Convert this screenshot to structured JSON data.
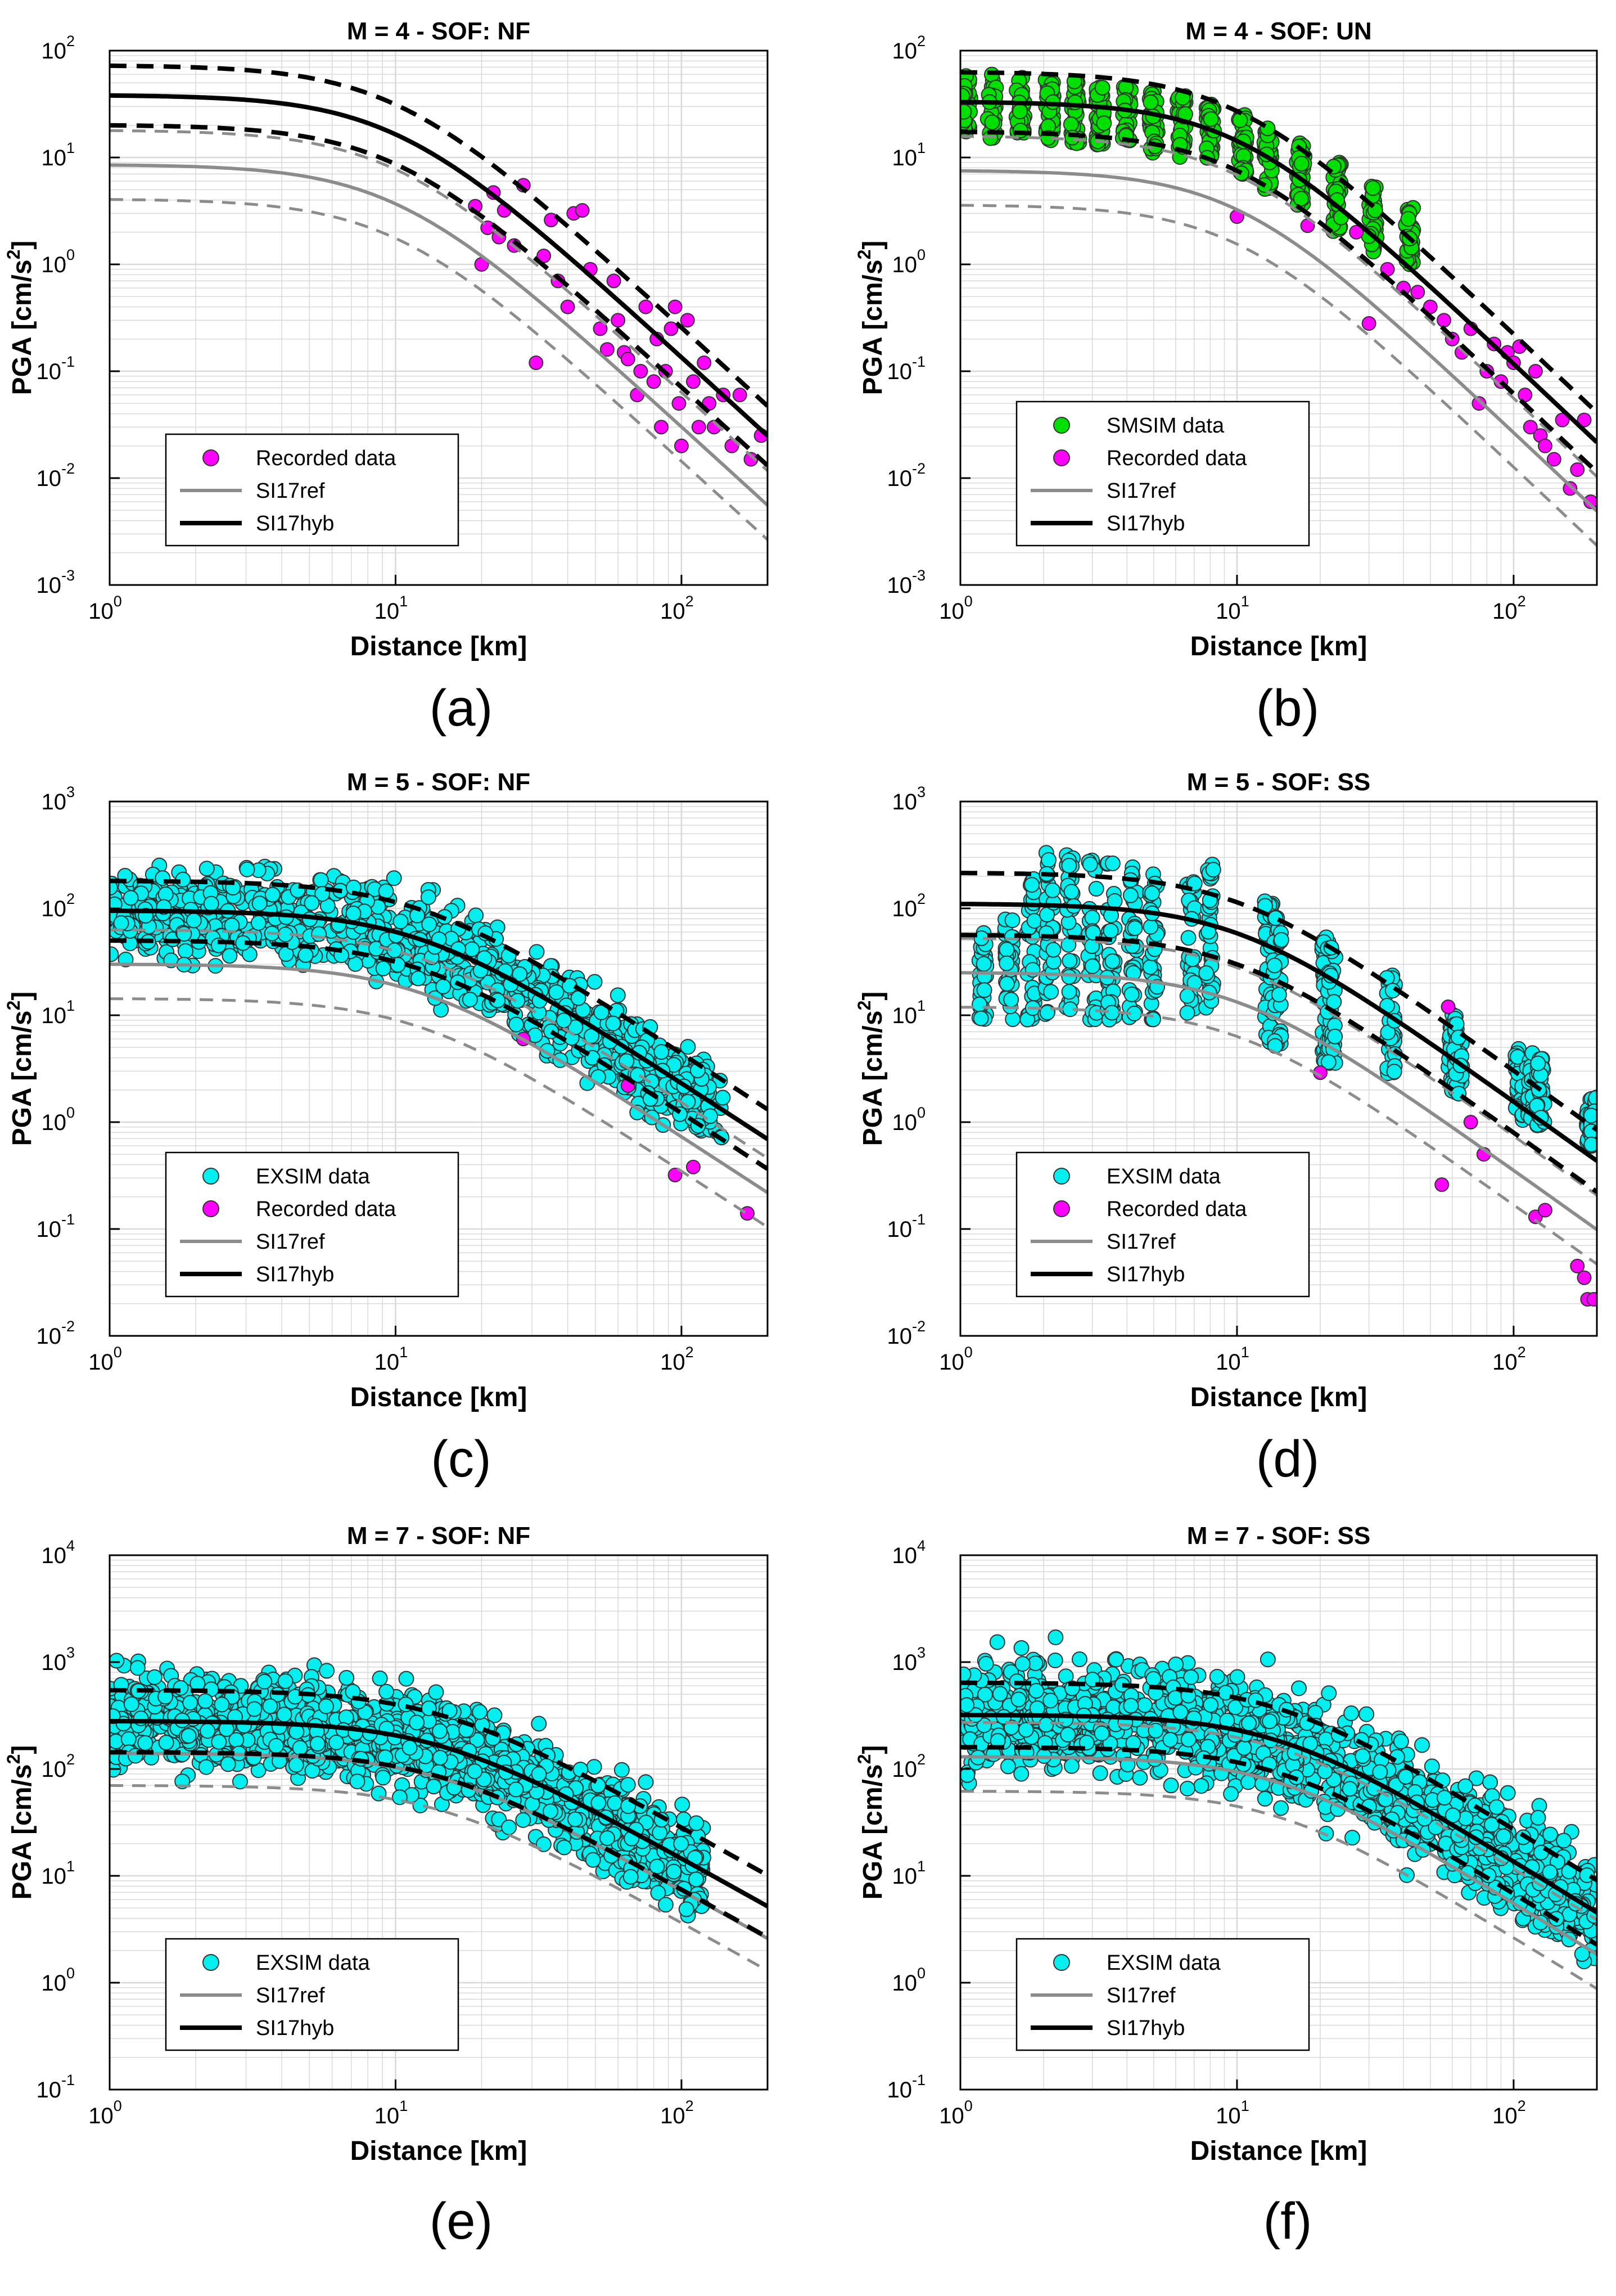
{
  "figure": {
    "colors": {
      "recorded": "#ff00ff",
      "smsim": "#00e000",
      "exsim": "#00f0f0",
      "ref": "#8c8c8c",
      "hyb": "#000000",
      "grid": "#d9d9d9"
    }
  },
  "chart_data": [
    {
      "type": "scatter",
      "panel_label": "(a)",
      "title": "M = 4 - SOF: NF",
      "xlabel": "Distance [km]",
      "ylabel": "PGA [cm/s²]",
      "xlim": [
        1,
        200
      ],
      "ylim": [
        0.001,
        100
      ],
      "x_ticks": [
        "10^0",
        "10^1",
        "10^2"
      ],
      "y_ticks": [
        "10^-3",
        "10^-2",
        "10^-1",
        "10^0",
        "10^1",
        "10^2"
      ],
      "grid": true,
      "legend_position": "lower-left",
      "legend": [
        "Recorded data",
        "SI17ref",
        "SI17hyb"
      ],
      "curves": {
        "hyb_median_pga_at_1km": 38,
        "hyb_sigma_factor": 1.9,
        "ref_median_pga_at_1km": 8.5,
        "ref_sigma_factor": 2.1,
        "corner_distance_km": 10,
        "far_slope": 2.45
      },
      "series": [
        {
          "name": "Recorded data",
          "points": [
            [
              19,
              3.5
            ],
            [
              20,
              1.0
            ],
            [
              21,
              2.2
            ],
            [
              22,
              4.7
            ],
            [
              23,
              1.8
            ],
            [
              24,
              3.2
            ],
            [
              26,
              1.5
            ],
            [
              28,
              5.5
            ],
            [
              31,
              0.12
            ],
            [
              33,
              1.2
            ],
            [
              35,
              2.6
            ],
            [
              37,
              0.7
            ],
            [
              40,
              0.4
            ],
            [
              42,
              3.0
            ],
            [
              45,
              3.2
            ],
            [
              48,
              0.9
            ],
            [
              52,
              0.25
            ],
            [
              55,
              0.16
            ],
            [
              58,
              0.7
            ],
            [
              60,
              0.3
            ],
            [
              63,
              0.15
            ],
            [
              65,
              0.13
            ],
            [
              70,
              0.06
            ],
            [
              72,
              0.1
            ],
            [
              75,
              0.4
            ],
            [
              80,
              0.08
            ],
            [
              82,
              0.2
            ],
            [
              85,
              0.03
            ],
            [
              88,
              0.1
            ],
            [
              92,
              0.25
            ],
            [
              95,
              0.4
            ],
            [
              98,
              0.05
            ],
            [
              100,
              0.02
            ],
            [
              105,
              0.3
            ],
            [
              110,
              0.08
            ],
            [
              115,
              0.03
            ],
            [
              120,
              0.12
            ],
            [
              125,
              0.05
            ],
            [
              130,
              0.03
            ],
            [
              140,
              0.06
            ],
            [
              150,
              0.02
            ],
            [
              160,
              0.06
            ],
            [
              175,
              0.015
            ],
            [
              190,
              0.025
            ]
          ]
        }
      ]
    },
    {
      "type": "scatter",
      "panel_label": "(b)",
      "title": "M = 4 - SOF: UN",
      "xlabel": "Distance [km]",
      "ylabel": "PGA [cm/s²]",
      "xlim": [
        1,
        200
      ],
      "ylim": [
        0.001,
        100
      ],
      "x_ticks": [
        "10^0",
        "10^1",
        "10^2"
      ],
      "y_ticks": [
        "10^-3",
        "10^-2",
        "10^-1",
        "10^0",
        "10^1",
        "10^2"
      ],
      "grid": true,
      "legend_position": "lower-left",
      "legend": [
        "SMSIM data",
        "Recorded data",
        "SI17ref",
        "SI17hyb"
      ],
      "curves": {
        "hyb_median_pga_at_1km": 33,
        "hyb_sigma_factor": 1.9,
        "ref_median_pga_at_1km": 7.5,
        "ref_sigma_factor": 2.1,
        "corner_distance_km": 10,
        "far_slope": 2.45
      },
      "series": [
        {
          "name": "SMSIM data",
          "columns": [
            {
              "x": 1.05,
              "low": 15,
              "high": 60
            },
            {
              "x": 1.3,
              "low": 15,
              "high": 60
            },
            {
              "x": 1.65,
              "low": 15,
              "high": 58
            },
            {
              "x": 2.1,
              "low": 14,
              "high": 55
            },
            {
              "x": 2.6,
              "low": 13,
              "high": 52
            },
            {
              "x": 3.2,
              "low": 13,
              "high": 50
            },
            {
              "x": 4.0,
              "low": 12,
              "high": 48
            },
            {
              "x": 5.0,
              "low": 11,
              "high": 44
            },
            {
              "x": 6.3,
              "low": 10,
              "high": 38
            },
            {
              "x": 8.0,
              "low": 9,
              "high": 32
            },
            {
              "x": 10.5,
              "low": 7,
              "high": 26
            },
            {
              "x": 13,
              "low": 5,
              "high": 20
            },
            {
              "x": 17,
              "low": 3.5,
              "high": 14
            },
            {
              "x": 23,
              "low": 2.0,
              "high": 9
            },
            {
              "x": 31,
              "low": 1.3,
              "high": 6
            },
            {
              "x": 42,
              "low": 1.0,
              "high": 3.5
            }
          ]
        },
        {
          "name": "Recorded data",
          "points": [
            [
              10,
              2.8
            ],
            [
              18,
              2.3
            ],
            [
              27,
              2.0
            ],
            [
              30,
              0.28
            ],
            [
              35,
              0.9
            ],
            [
              40,
              0.6
            ],
            [
              45,
              0.55
            ],
            [
              50,
              0.4
            ],
            [
              56,
              0.3
            ],
            [
              60,
              0.2
            ],
            [
              65,
              0.15
            ],
            [
              70,
              0.25
            ],
            [
              75,
              0.05
            ],
            [
              80,
              0.1
            ],
            [
              85,
              0.18
            ],
            [
              90,
              0.08
            ],
            [
              95,
              0.15
            ],
            [
              100,
              0.12
            ],
            [
              105,
              0.17
            ],
            [
              110,
              0.06
            ],
            [
              115,
              0.03
            ],
            [
              120,
              0.1
            ],
            [
              125,
              0.025
            ],
            [
              130,
              0.02
            ],
            [
              140,
              0.015
            ],
            [
              150,
              0.035
            ],
            [
              160,
              0.008
            ],
            [
              170,
              0.012
            ],
            [
              180,
              0.035
            ],
            [
              190,
              0.006
            ]
          ]
        }
      ]
    },
    {
      "type": "scatter",
      "panel_label": "(c)",
      "title": "M = 5 - SOF: NF",
      "xlabel": "Distance [km]",
      "ylabel": "PGA [cm/s²]",
      "xlim": [
        1,
        200
      ],
      "ylim": [
        0.01,
        1000
      ],
      "x_ticks": [
        "10^0",
        "10^1",
        "10^2"
      ],
      "y_ticks": [
        "10^-2",
        "10^-1",
        "10^0",
        "10^1",
        "10^2",
        "10^3"
      ],
      "grid": true,
      "legend_position": "lower-left",
      "legend": [
        "EXSIM data",
        "Recorded data",
        "SI17ref",
        "SI17hyb"
      ],
      "curves": {
        "hyb_median_pga_at_1km": 95,
        "hyb_sigma_factor": 1.9,
        "ref_median_pga_at_1km": 30,
        "ref_sigma_factor": 2.1,
        "corner_distance_km": 12,
        "far_slope": 1.75
      },
      "series": [
        {
          "name": "EXSIM data",
          "band": {
            "x_min": 1,
            "x_max": 140,
            "sigma_factor": 2.0,
            "median_scale": 0.9
          }
        },
        {
          "name": "Recorded data",
          "points": [
            [
              28,
              6
            ],
            [
              65,
              2.2
            ],
            [
              95,
              0.32
            ],
            [
              110,
              0.38
            ],
            [
              170,
              0.14
            ]
          ]
        }
      ]
    },
    {
      "type": "scatter",
      "panel_label": "(d)",
      "title": "M = 5 - SOF: SS",
      "xlabel": "Distance [km]",
      "ylabel": "PGA [cm/s²]",
      "xlim": [
        1,
        200
      ],
      "ylim": [
        0.01,
        1000
      ],
      "x_ticks": [
        "10^0",
        "10^1",
        "10^2"
      ],
      "y_ticks": [
        "10^-2",
        "10^-1",
        "10^0",
        "10^1",
        "10^2",
        "10^3"
      ],
      "grid": true,
      "legend_position": "lower-left",
      "legend": [
        "EXSIM data",
        "Recorded data",
        "SI17ref",
        "SI17hyb"
      ],
      "curves": {
        "hyb_median_pga_at_1km": 110,
        "hyb_sigma_factor": 1.95,
        "ref_median_pga_at_1km": 25,
        "ref_sigma_factor": 2.1,
        "corner_distance_km": 10,
        "far_slope": 1.85
      },
      "series": [
        {
          "name": "EXSIM data",
          "columns": [
            {
              "x": 1.2,
              "low": 9,
              "high": 60
            },
            {
              "x": 1.5,
              "low": 9,
              "high": 100
            },
            {
              "x": 1.8,
              "low": 9,
              "high": 200
            },
            {
              "x": 2.1,
              "low": 9,
              "high": 350
            },
            {
              "x": 2.5,
              "low": 9,
              "high": 320
            },
            {
              "x": 3.0,
              "low": 9,
              "high": 300
            },
            {
              "x": 3.5,
              "low": 9,
              "high": 280
            },
            {
              "x": 4.2,
              "low": 9,
              "high": 250
            },
            {
              "x": 5.0,
              "low": 9,
              "high": 250
            },
            {
              "x": 6.8,
              "low": 8,
              "high": 220
            },
            {
              "x": 8.0,
              "low": 8,
              "high": 280
            },
            {
              "x": 13,
              "low": 5,
              "high": 120
            },
            {
              "x": 14,
              "low": 5,
              "high": 100
            },
            {
              "x": 21,
              "low": 3.5,
              "high": 55
            },
            {
              "x": 22,
              "low": 3.5,
              "high": 50
            },
            {
              "x": 36,
              "low": 2.2,
              "high": 28
            },
            {
              "x": 60,
              "low": 1.8,
              "high": 12
            },
            {
              "x": 63,
              "low": 1.8,
              "high": 10
            },
            {
              "x": 105,
              "low": 1.0,
              "high": 5
            },
            {
              "x": 115,
              "low": 1.0,
              "high": 4.5
            },
            {
              "x": 125,
              "low": 0.9,
              "high": 4
            },
            {
              "x": 190,
              "low": 0.6,
              "high": 1.8
            },
            {
              "x": 195,
              "low": 0.6,
              "high": 1.8
            }
          ]
        },
        {
          "name": "Recorded data",
          "points": [
            [
              20,
              2.9
            ],
            [
              55,
              0.26
            ],
            [
              58,
              12
            ],
            [
              70,
              1.0
            ],
            [
              78,
              0.5
            ],
            [
              120,
              0.13
            ],
            [
              130,
              0.15
            ],
            [
              170,
              0.045
            ],
            [
              180,
              0.035
            ],
            [
              185,
              0.022
            ],
            [
              195,
              0.022
            ]
          ]
        }
      ]
    },
    {
      "type": "scatter",
      "panel_label": "(e)",
      "title": "M = 7 - SOF: NF",
      "xlabel": "Distance [km]",
      "ylabel": "PGA [cm/s²]",
      "xlim": [
        1,
        200
      ],
      "ylim": [
        0.1,
        10000
      ],
      "x_ticks": [
        "10^0",
        "10^1",
        "10^2"
      ],
      "y_ticks": [
        "10^-1",
        "10^0",
        "10^1",
        "10^2",
        "10^3",
        "10^4"
      ],
      "grid": true,
      "legend_position": "lower-left",
      "legend": [
        "EXSIM data",
        "SI17ref",
        "SI17hyb"
      ],
      "curves": {
        "hyb_median_pga_at_1km": 280,
        "hyb_sigma_factor": 1.95,
        "ref_median_pga_at_1km": 140,
        "ref_sigma_factor": 2.0,
        "corner_distance_km": 14,
        "far_slope": 1.5
      },
      "series": [
        {
          "name": "EXSIM data",
          "band": {
            "x_min": 1,
            "x_max": 120,
            "sigma_factor": 2.1,
            "median_scale": 0.95
          }
        }
      ]
    },
    {
      "type": "scatter",
      "panel_label": "(f)",
      "title": "M = 7 - SOF: SS",
      "xlabel": "Distance [km]",
      "ylabel": "PGA [cm/s²]",
      "xlim": [
        1,
        200
      ],
      "ylim": [
        0.1,
        10000
      ],
      "x_ticks": [
        "10^0",
        "10^1",
        "10^2"
      ],
      "y_ticks": [
        "10^-1",
        "10^0",
        "10^1",
        "10^2",
        "10^3",
        "10^4"
      ],
      "grid": true,
      "legend_position": "lower-left",
      "legend": [
        "EXSIM data",
        "SI17ref",
        "SI17hyb"
      ],
      "curves": {
        "hyb_median_pga_at_1km": 320,
        "hyb_sigma_factor": 2.0,
        "ref_median_pga_at_1km": 130,
        "ref_sigma_factor": 2.1,
        "corner_distance_km": 14,
        "far_slope": 1.6
      },
      "series": [
        {
          "name": "EXSIM data",
          "band": {
            "x_min": 1,
            "x_max": 200,
            "sigma_factor": 2.3,
            "median_scale": 1.0
          }
        }
      ]
    }
  ]
}
